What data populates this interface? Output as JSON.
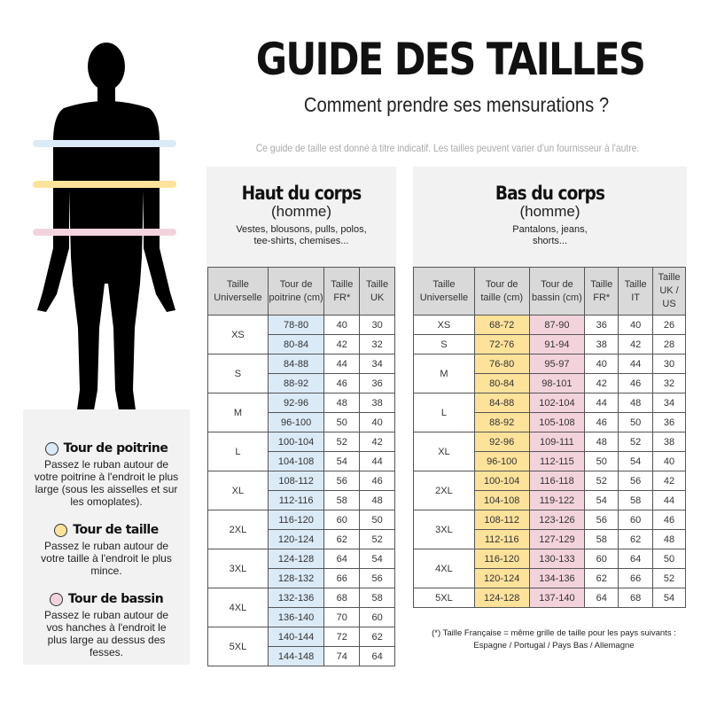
{
  "header": {
    "title": "GUIDE DES TAILLES",
    "subtitle": "Comment prendre ses mensurations ?",
    "disclaimer": "Ce guide de taille est donné à titre indicatif. Les tailles peuvent varier d'un fournisseur à l'autre."
  },
  "colors": {
    "poitrine": "#dbeaf7",
    "taille": "#fde29a",
    "bassin": "#f2d3dc",
    "panel": "#f2f2f2",
    "header": "#d9d9d9"
  },
  "figure": {
    "icon": "man-silhouette-icon"
  },
  "legend": [
    {
      "title": "Tour de poitrine",
      "color": "#dbeaf7",
      "text": "Passez le ruban autour de votre poitrine à l'endroit le plus large (sous les aisselles et sur les omoplates)."
    },
    {
      "title": "Tour de taille",
      "color": "#fde29a",
      "text": "Passez le ruban autour de votre taille à l'endroit le plus mince."
    },
    {
      "title": "Tour de bassin",
      "color": "#f2d3dc",
      "text": "Passez le ruban autour de vos hanches à l'endroit le plus large au dessus des fesses."
    }
  ],
  "haut": {
    "title": "Haut du corps",
    "gender": "(homme)",
    "desc": "Vestes, blousons, pulls, polos, tee-shirts, chemises...",
    "columns": [
      "Taille Universelle",
      "Tour de poitrine (cm)",
      "Taille FR*",
      "Taille UK"
    ],
    "groups": [
      {
        "size": "XS",
        "rows": [
          [
            "78-80",
            "40",
            "30"
          ],
          [
            "80-84",
            "42",
            "32"
          ]
        ]
      },
      {
        "size": "S",
        "rows": [
          [
            "84-88",
            "44",
            "34"
          ],
          [
            "88-92",
            "46",
            "36"
          ]
        ]
      },
      {
        "size": "M",
        "rows": [
          [
            "92-96",
            "48",
            "38"
          ],
          [
            "96-100",
            "50",
            "40"
          ]
        ]
      },
      {
        "size": "L",
        "rows": [
          [
            "100-104",
            "52",
            "42"
          ],
          [
            "104-108",
            "54",
            "44"
          ]
        ]
      },
      {
        "size": "XL",
        "rows": [
          [
            "108-112",
            "56",
            "46"
          ],
          [
            "112-116",
            "58",
            "48"
          ]
        ]
      },
      {
        "size": "2XL",
        "rows": [
          [
            "116-120",
            "60",
            "50"
          ],
          [
            "120-124",
            "62",
            "52"
          ]
        ]
      },
      {
        "size": "3XL",
        "rows": [
          [
            "124-128",
            "64",
            "54"
          ],
          [
            "128-132",
            "66",
            "56"
          ]
        ]
      },
      {
        "size": "4XL",
        "rows": [
          [
            "132-136",
            "68",
            "58"
          ],
          [
            "136-140",
            "70",
            "60"
          ]
        ]
      },
      {
        "size": "5XL",
        "rows": [
          [
            "140-144",
            "72",
            "62"
          ],
          [
            "144-148",
            "74",
            "64"
          ]
        ]
      }
    ]
  },
  "bas": {
    "title": "Bas du corps",
    "gender": "(homme)",
    "desc": "Pantalons, jeans, shorts...",
    "columns": [
      "Taille Universelle",
      "Tour de taille (cm)",
      "Tour de bassin (cm)",
      "Taille FR*",
      "Taille IT",
      "Taille UK / US"
    ],
    "groups": [
      {
        "size": "XS",
        "rows": [
          [
            "68-72",
            "87-90",
            "36",
            "40",
            "26"
          ]
        ]
      },
      {
        "size": "S",
        "rows": [
          [
            "72-76",
            "91-94",
            "38",
            "42",
            "28"
          ]
        ]
      },
      {
        "size": "M",
        "rows": [
          [
            "76-80",
            "95-97",
            "40",
            "44",
            "30"
          ],
          [
            "80-84",
            "98-101",
            "42",
            "46",
            "32"
          ]
        ]
      },
      {
        "size": "L",
        "rows": [
          [
            "84-88",
            "102-104",
            "44",
            "48",
            "34"
          ],
          [
            "88-92",
            "105-108",
            "46",
            "50",
            "36"
          ]
        ]
      },
      {
        "size": "XL",
        "rows": [
          [
            "92-96",
            "109-111",
            "48",
            "52",
            "38"
          ],
          [
            "96-100",
            "112-115",
            "50",
            "54",
            "40"
          ]
        ]
      },
      {
        "size": "2XL",
        "rows": [
          [
            "100-104",
            "116-118",
            "52",
            "56",
            "42"
          ],
          [
            "104-108",
            "119-122",
            "54",
            "58",
            "44"
          ]
        ]
      },
      {
        "size": "3XL",
        "rows": [
          [
            "108-112",
            "123-126",
            "56",
            "60",
            "46"
          ],
          [
            "112-116",
            "127-129",
            "58",
            "62",
            "48"
          ]
        ]
      },
      {
        "size": "4XL",
        "rows": [
          [
            "116-120",
            "130-133",
            "60",
            "64",
            "50"
          ],
          [
            "120-124",
            "134-136",
            "62",
            "66",
            "52"
          ]
        ]
      },
      {
        "size": "5XL",
        "rows": [
          [
            "124-128",
            "137-140",
            "64",
            "68",
            "54"
          ]
        ]
      }
    ]
  },
  "footnote": {
    "line1": "(*) Taille Française = même grille de taille pour les pays suivants :",
    "line2": "Espagne / Portugal / Pays Bas / Allemagne"
  }
}
